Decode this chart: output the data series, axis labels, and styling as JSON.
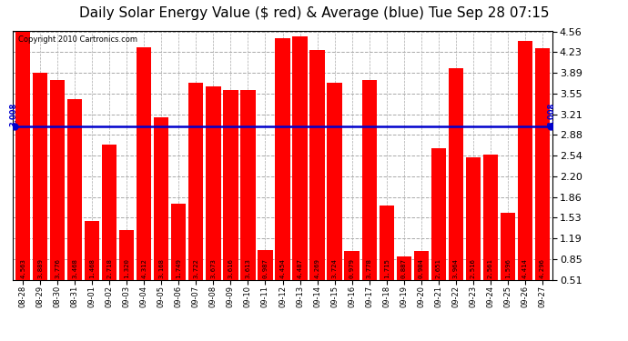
{
  "title": "Daily Solar Energy Value ($ red) & Average (blue) Tue Sep 28 07:15",
  "copyright": "Copyright 2010 Cartronics.com",
  "categories": [
    "08-28",
    "08-29",
    "08-30",
    "08-31",
    "09-01",
    "09-02",
    "09-03",
    "09-04",
    "09-05",
    "09-06",
    "09-07",
    "09-08",
    "09-09",
    "09-10",
    "09-11",
    "09-12",
    "09-13",
    "09-14",
    "09-15",
    "09-16",
    "09-17",
    "09-18",
    "09-19",
    "09-20",
    "09-21",
    "09-22",
    "09-23",
    "09-24",
    "09-25",
    "09-26",
    "09-27"
  ],
  "values": [
    4.563,
    3.889,
    3.776,
    3.468,
    1.468,
    2.718,
    1.32,
    4.312,
    3.168,
    1.749,
    3.722,
    3.673,
    3.616,
    3.613,
    0.987,
    4.454,
    4.487,
    4.269,
    3.724,
    0.979,
    3.778,
    1.715,
    0.887,
    0.984,
    2.651,
    3.964,
    2.516,
    2.561,
    1.596,
    4.414,
    4.296
  ],
  "average": 3.008,
  "bar_color": "#ff0000",
  "avg_line_color": "#0000cc",
  "background_color": "#ffffff",
  "plot_bg_color": "#ffffff",
  "grid_color": "#aaaaaa",
  "title_fontsize": 11,
  "ymin": 0.51,
  "ymax": 4.56,
  "yticks": [
    0.51,
    0.85,
    1.19,
    1.53,
    1.86,
    2.2,
    2.54,
    2.88,
    3.21,
    3.55,
    3.89,
    4.23,
    4.56
  ]
}
